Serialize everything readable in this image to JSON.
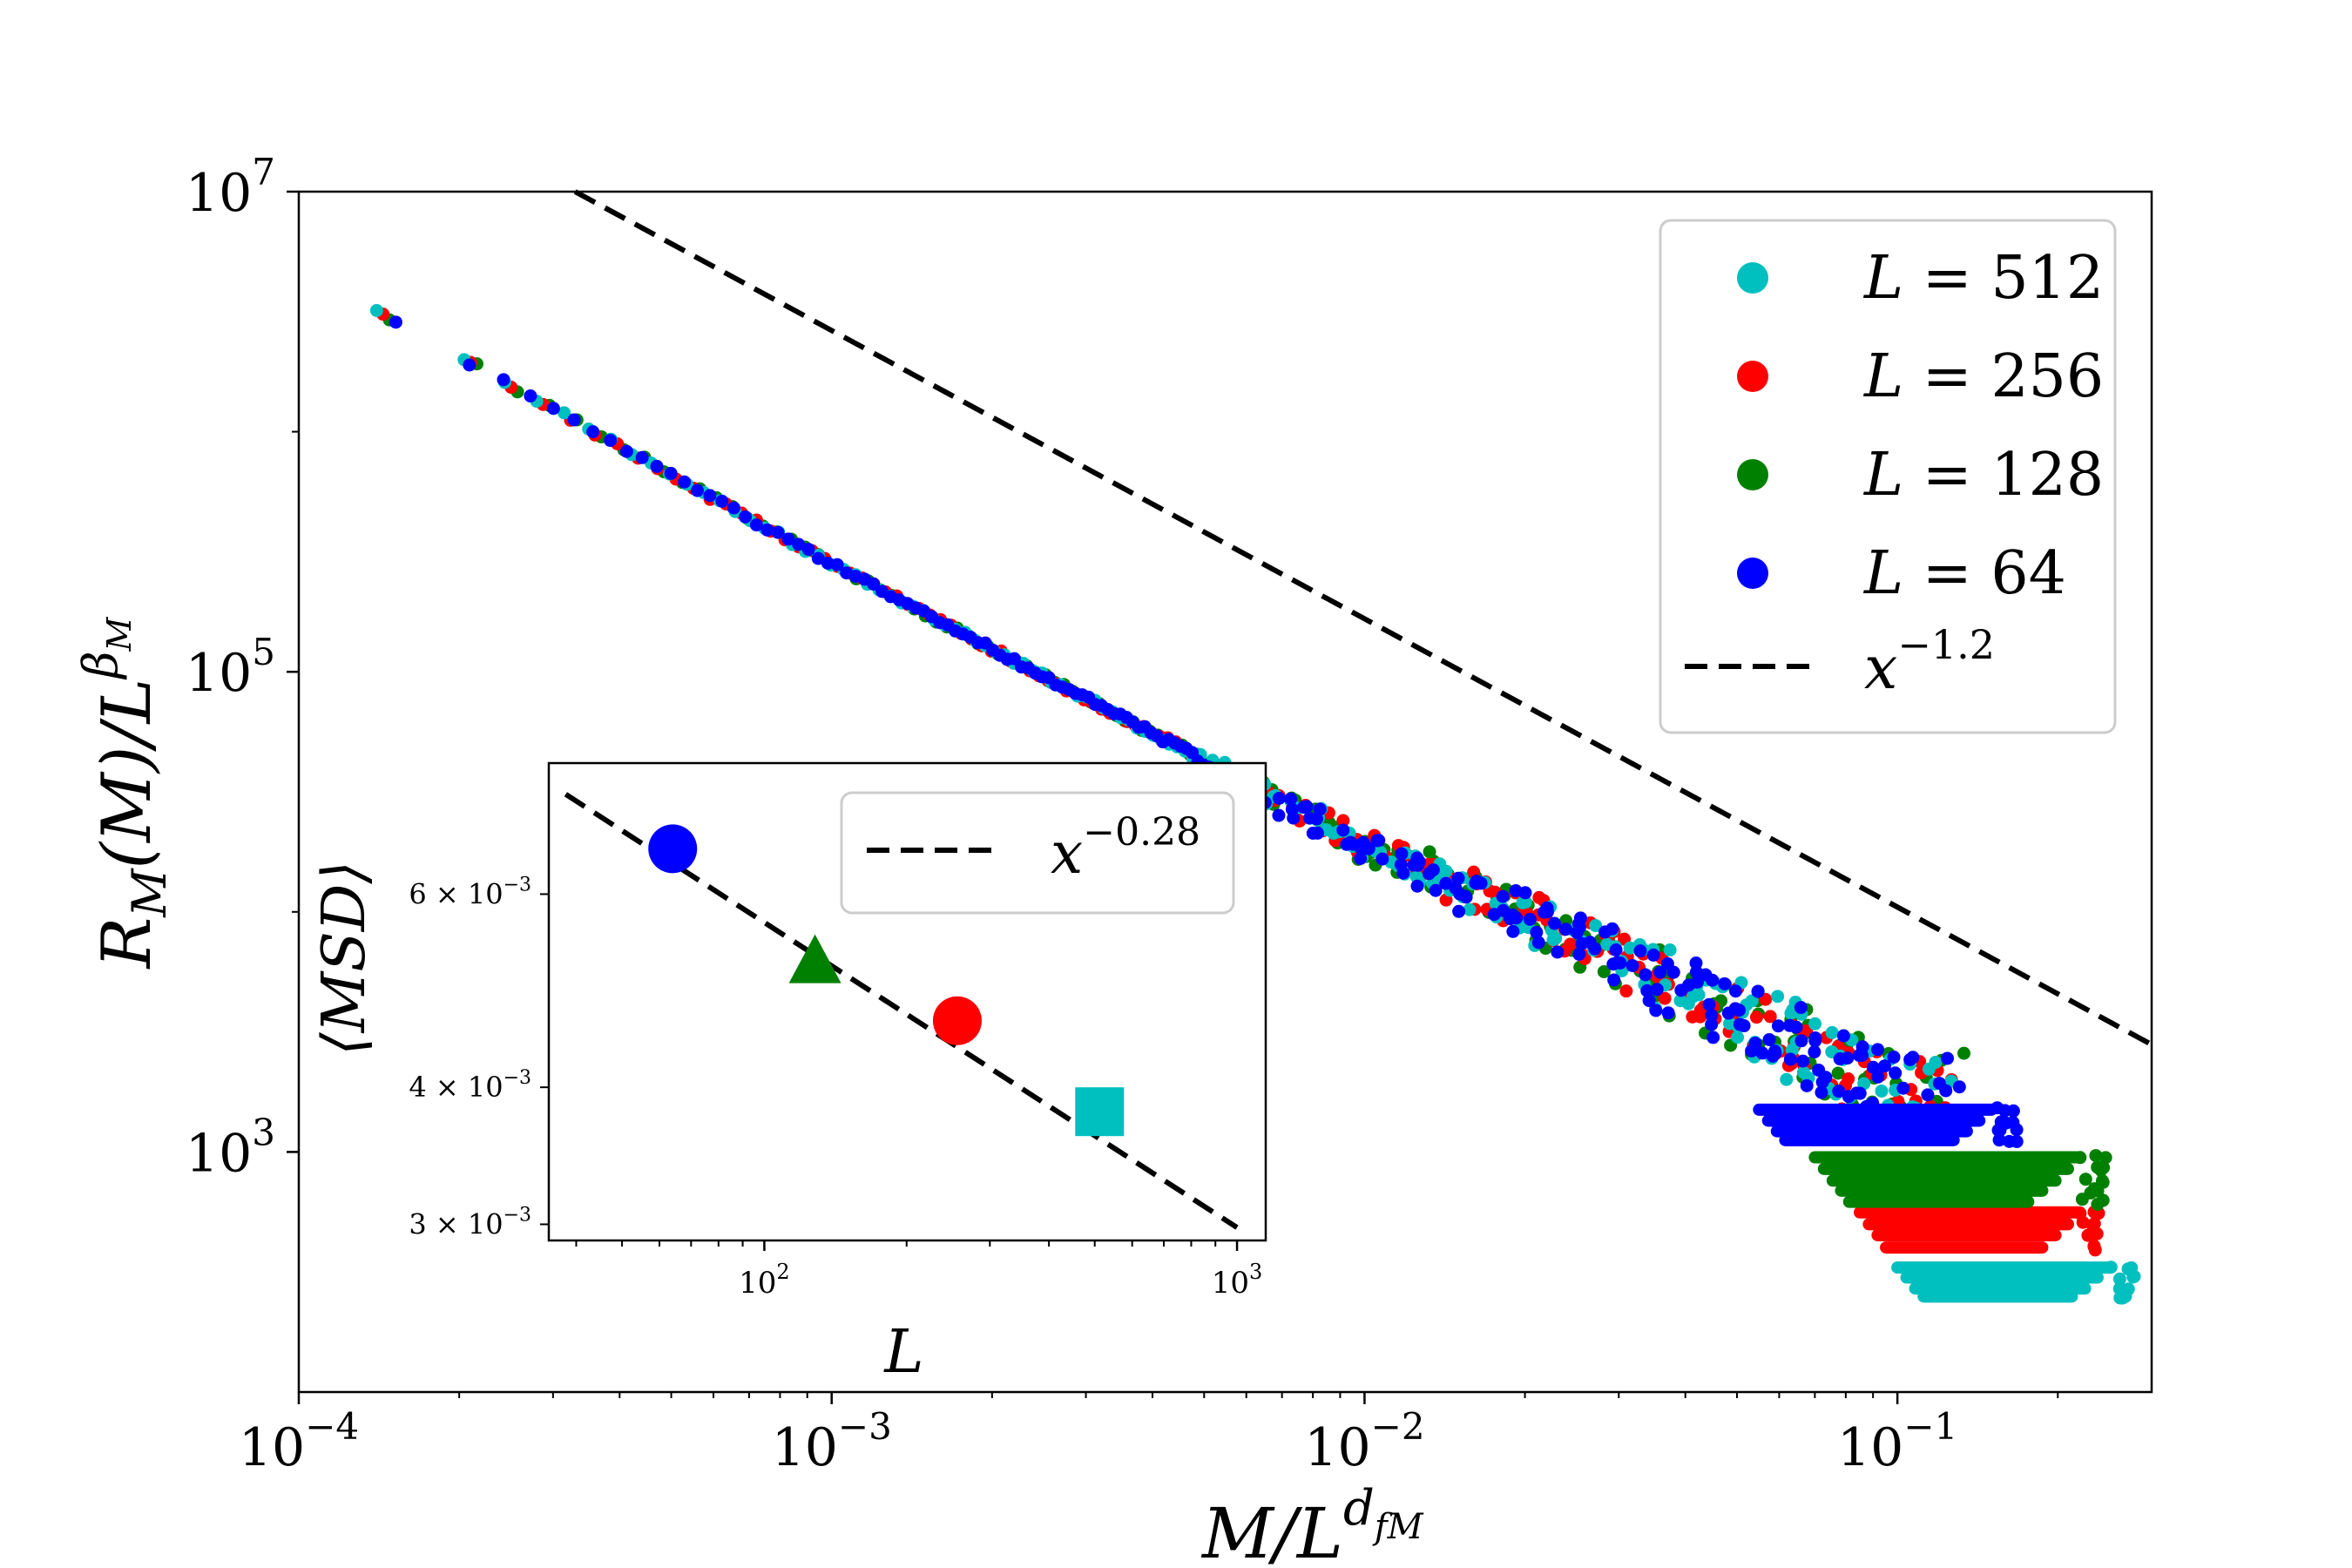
{
  "chart_data": [
    {
      "type": "scatter",
      "xscale": "log",
      "yscale": "log",
      "xlim": [
        0.0001,
        0.3
      ],
      "ylim": [
        100,
        10000000
      ],
      "xlabel": "M/L^{d_{fM}}",
      "ylabel": "R_M(M)/L^{β_M}",
      "x_ticks": [
        {
          "value": 0.0001,
          "base": "10",
          "exp": "−4"
        },
        {
          "value": 0.001,
          "base": "10",
          "exp": "−3"
        },
        {
          "value": 0.01,
          "base": "10",
          "exp": "−2"
        },
        {
          "value": 0.1,
          "base": "10",
          "exp": "−1"
        }
      ],
      "y_ticks": [
        {
          "value": 1000,
          "base": "10",
          "exp": "3"
        },
        {
          "value": 100000,
          "base": "10",
          "exp": "5"
        },
        {
          "value": 10000000,
          "base": "10",
          "exp": "7"
        }
      ],
      "legend_position": "top-right",
      "series": [
        {
          "name": "L = 512",
          "label_var": "L",
          "label_val": "= 512",
          "color": "#00bfbf",
          "marker": "circle"
        },
        {
          "name": "L = 256",
          "label_var": "L",
          "label_val": "= 256",
          "color": "#ff0000",
          "marker": "circle"
        },
        {
          "name": "L = 128",
          "label_var": "L",
          "label_val": "= 128",
          "color": "#008000",
          "marker": "circle"
        },
        {
          "name": "L = 64",
          "label_var": "L",
          "label_val": "= 64",
          "color": "#0000ff",
          "marker": "circle"
        }
      ],
      "reference_line": {
        "name": "x^{-1.2}",
        "base": "x",
        "exp": "−1.2",
        "slope": -1.2,
        "points": [
          [
            0.00033,
            10000000
          ],
          [
            0.3,
            2800
          ]
        ],
        "color": "#000000",
        "style": "dashed"
      },
      "collapse_curve": {
        "slope": -1.2,
        "points": [
          [
            0.00014,
            3200000
          ],
          [
            0.001,
            280000
          ],
          [
            0.01,
            19000
          ],
          [
            0.05,
            3800
          ],
          [
            0.1,
            1700
          ]
        ]
      },
      "tail_bands": [
        {
          "series": "L = 512",
          "y_values": [
            330,
            300,
            270,
            250
          ],
          "x_from": 0.1,
          "x_to": 0.25
        },
        {
          "series": "L = 256",
          "y_values": [
            560,
            500,
            450,
            400
          ],
          "x_from": 0.085,
          "x_to": 0.22
        },
        {
          "series": "L = 128",
          "y_values": [
            950,
            850,
            760,
            690,
            620
          ],
          "x_from": 0.07,
          "x_to": 0.22
        },
        {
          "series": "L = 64",
          "y_values": [
            1500,
            1350,
            1220,
            1120
          ],
          "x_from": 0.055,
          "x_to": 0.15
        }
      ]
    },
    {
      "type": "scatter",
      "inset": true,
      "xscale": "log",
      "yscale": "log",
      "xlim": [
        35,
        1150
      ],
      "ylim": [
        0.0029,
        0.0079
      ],
      "xlabel": "L",
      "ylabel": "⟨MSD⟩",
      "x_ticks": [
        {
          "value": 100,
          "base": "10",
          "exp": "2"
        },
        {
          "value": 1000,
          "base": "10",
          "exp": "3"
        }
      ],
      "y_ticks": [
        {
          "value": 0.006,
          "mant": "6 × 10",
          "exp": "−3"
        },
        {
          "value": 0.004,
          "mant": "4 × 10",
          "exp": "−3"
        },
        {
          "value": 0.003,
          "mant": "3 × 10",
          "exp": "−3"
        }
      ],
      "legend_position": "top-right",
      "points": [
        {
          "L": 64,
          "msd": 0.0066,
          "marker": "circle",
          "color": "#0000ff"
        },
        {
          "L": 128,
          "msd": 0.0052,
          "marker": "triangle",
          "color": "#008000"
        },
        {
          "L": 256,
          "msd": 0.0046,
          "marker": "circle",
          "color": "#ff0000"
        },
        {
          "L": 512,
          "msd": 0.0038,
          "marker": "square",
          "color": "#00bfbf"
        }
      ],
      "reference_line": {
        "name": "x^{-0.28}",
        "base": "x",
        "exp": "−0.28",
        "slope": -0.28,
        "points": [
          [
            38,
            0.0074
          ],
          [
            1000,
            0.00298
          ]
        ],
        "color": "#000000",
        "style": "dashed"
      }
    }
  ]
}
